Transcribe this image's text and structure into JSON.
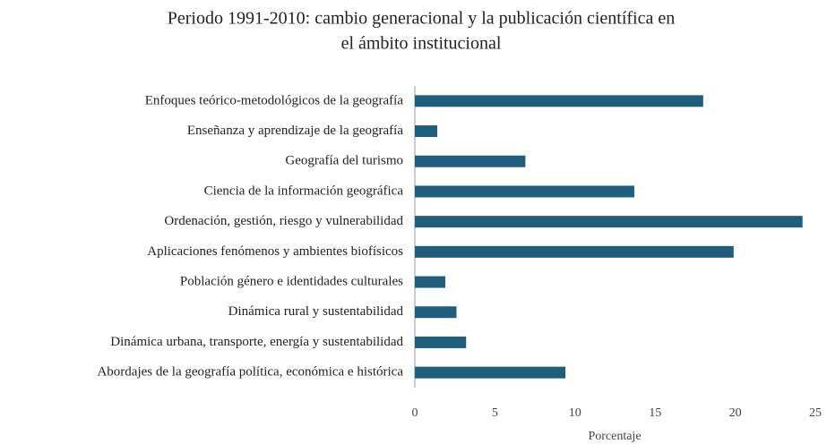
{
  "chart_data": {
    "type": "barh",
    "title": [
      "Periodo 1991-2010:  cambio generacional y la publicación científica en",
      "el ámbito institucional"
    ],
    "xlabel": "Porcentaje",
    "categories": [
      "Enfoques teórico-metodológicos de la geografía",
      "Enseñanza y aprendizaje de la geografía",
      "Geografía del turismo",
      "Ciencia de la información geográfica",
      "Ordenación, gestión, riesgo y vulnerabilidad",
      "Aplicaciones fenómenos y ambientes biofísicos",
      "Población género e identidades culturales",
      "Dinámica rural y sustentabilidad",
      "Dinámica urbana, transporte, energía y sustentabilidad",
      "Abordajes de la geografía política, económica e histórica"
    ],
    "values": [
      18.0,
      1.4,
      6.9,
      13.7,
      24.2,
      19.9,
      1.9,
      2.6,
      3.2,
      9.4
    ],
    "color": "#1f5f7d",
    "xlim": [
      0,
      25
    ],
    "xticks": [
      0,
      5,
      10,
      15,
      20,
      25
    ],
    "grid": false
  }
}
